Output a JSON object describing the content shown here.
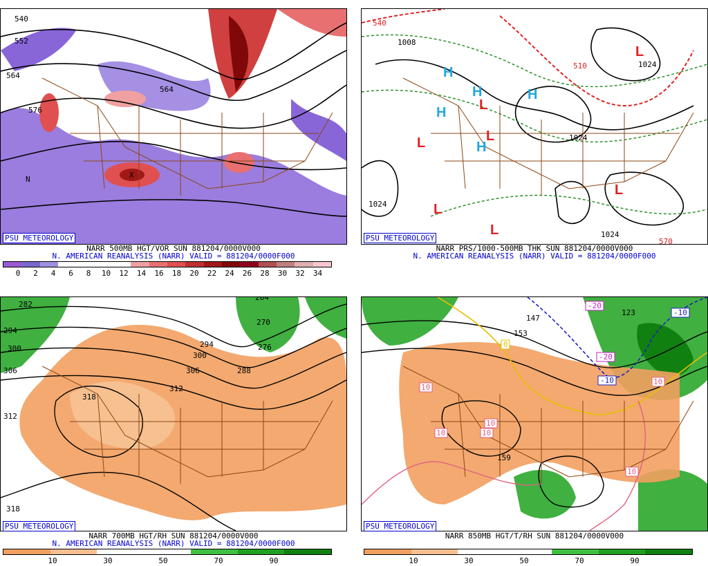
{
  "panels": [
    {
      "badge": "PSU METEOROLOGY",
      "caption1": "NARR 500MB HGT/VOR SUN 881204/0000V000",
      "caption2": "N. AMERICAN REANALYSIS (NARR) VALID = 881204/0000F000",
      "colorbar_ticks": [
        "0",
        "2",
        "4",
        "6",
        "8",
        "10",
        "12",
        "14",
        "16",
        "18",
        "20",
        "22",
        "24",
        "26",
        "28",
        "30",
        "32",
        "34"
      ],
      "map_labels": [
        "540",
        "552",
        "564",
        "576",
        "564",
        "N",
        "X"
      ]
    },
    {
      "badge": "PSU METEOROLOGY",
      "caption1": "NARR PRS/1000-500MB THK SUN 881204/0000V000",
      "caption2": "N. AMERICAN REANALYSIS (NARR) VALID = 881204/0000F000",
      "map_labels": [
        "540",
        "1008",
        "1024",
        "1024",
        "1024",
        "1024",
        "510",
        "570",
        "L",
        "H"
      ]
    },
    {
      "badge": "PSU METEOROLOGY",
      "caption1": "NARR 700MB HGT/RH SUN 881204/0000V000",
      "caption2": "N. AMERICAN REANALYSIS (NARR) VALID = 881204/0000F000",
      "colorbar_ticks": [
        "10",
        "30",
        "50",
        "70",
        "90"
      ],
      "map_labels": [
        "282",
        "294",
        "300",
        "306",
        "312",
        "318",
        "318",
        "270",
        "276",
        "288",
        "294",
        "300",
        "306",
        "312",
        "264"
      ]
    },
    {
      "badge": "PSU METEOROLOGY",
      "caption1": "NARR 850MB HGT/T/RH SUN 881204/0000V000",
      "colorbar_ticks": [
        "10",
        "30",
        "50",
        "70",
        "90"
      ],
      "map_labels": [
        "147",
        "153",
        "159",
        "123",
        "-20",
        "-20",
        "-10",
        "-10",
        "10",
        "10",
        "10",
        "10",
        "10",
        "10",
        "0"
      ]
    }
  ],
  "colors": {
    "vor_scale": [
      "#9b59d6",
      "#7b68cc",
      "#a090e0",
      "#fff",
      "#fff",
      "#fff",
      "#fff",
      "#f0a0a0",
      "#e87070",
      "#e05050",
      "#c03030",
      "#a01818",
      "#800808",
      "#900020",
      "#b05050",
      "#c08080",
      "#e0b0b0",
      "#f8c8d0"
    ],
    "rh_scale": [
      "#f2a060",
      "#f6c090",
      "#fff",
      "#fff",
      "#40c040",
      "#20a020",
      "#108010"
    ],
    "caption_blue": "#0000cc",
    "border_brown": "#8b4513"
  }
}
